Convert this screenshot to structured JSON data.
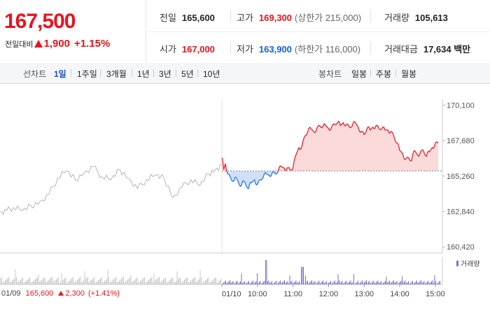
{
  "quote": {
    "price": "167,500",
    "change_label": "전일대비",
    "change_value": "1,900",
    "change_pct": "+1.15%",
    "prev_close_label": "전일",
    "prev_close": "165,600",
    "high_label": "고가",
    "high": "169,300",
    "upper_limit": "(상한가 215,000)",
    "volume_label": "거래량",
    "volume": "105,613",
    "open_label": "시가",
    "open": "167,000",
    "low_label": "저가",
    "low": "163,900",
    "lower_limit": "(하한가 116,000)",
    "amount_label": "거래대금",
    "amount": "17,634 백만"
  },
  "period_bar": {
    "line_label": "선차트",
    "line_options": [
      "1일",
      "1주일",
      "3개월",
      "1년",
      "3년",
      "5년",
      "10년"
    ],
    "line_active": "1일",
    "candle_label": "봉차트",
    "candle_options": [
      "일봉",
      "주봉",
      "월봉"
    ]
  },
  "chart_data": {
    "type": "line",
    "prev_close": 165600,
    "ylim": [
      160000,
      170500
    ],
    "y_ticks": [
      "170,100",
      "167,680",
      "165,260",
      "162,840",
      "160,420"
    ],
    "y_tick_values": [
      170100,
      167680,
      165260,
      162840,
      160420
    ],
    "x_ticks": [
      "01/10",
      "10:00",
      "11:00",
      "12:00",
      "13:00",
      "14:00",
      "15:00"
    ],
    "x_tick_times": [
      540,
      600,
      660,
      720,
      780,
      840,
      900
    ],
    "prev_day_path": [
      [
        0,
        162800
      ],
      [
        0.03,
        162900
      ],
      [
        0.06,
        163100
      ],
      [
        0.1,
        162900
      ],
      [
        0.14,
        163200
      ],
      [
        0.18,
        163500
      ],
      [
        0.22,
        164000
      ],
      [
        0.26,
        165100
      ],
      [
        0.3,
        165600
      ],
      [
        0.34,
        165000
      ],
      [
        0.38,
        165500
      ],
      [
        0.42,
        165900
      ],
      [
        0.46,
        165200
      ],
      [
        0.5,
        165000
      ],
      [
        0.54,
        165700
      ],
      [
        0.58,
        165100
      ],
      [
        0.62,
        164400
      ],
      [
        0.66,
        165000
      ],
      [
        0.7,
        165300
      ],
      [
        0.74,
        165100
      ],
      [
        0.78,
        163800
      ],
      [
        0.82,
        164500
      ],
      [
        0.86,
        165000
      ],
      [
        0.9,
        164600
      ],
      [
        0.94,
        165400
      ],
      [
        0.97,
        165700
      ],
      [
        1.0,
        166000
      ]
    ],
    "series": [
      {
        "points": [
          [
            540,
            166500
          ],
          [
            543,
            165700
          ],
          [
            546,
            166100
          ],
          [
            550,
            165400
          ],
          [
            555,
            165100
          ],
          [
            560,
            164900
          ],
          [
            565,
            165100
          ],
          [
            570,
            164600
          ],
          [
            575,
            164900
          ],
          [
            580,
            164700
          ],
          [
            585,
            164400
          ],
          [
            590,
            164800
          ],
          [
            595,
            165000
          ],
          [
            600,
            164700
          ],
          [
            605,
            165000
          ],
          [
            610,
            165200
          ],
          [
            615,
            165400
          ],
          [
            620,
            165300
          ],
          [
            625,
            165500
          ],
          [
            630,
            165400
          ],
          [
            635,
            165600
          ],
          [
            640,
            165900
          ],
          [
            645,
            165800
          ],
          [
            650,
            165800
          ],
          [
            655,
            165700
          ],
          [
            660,
            165800
          ],
          [
            665,
            166700
          ],
          [
            670,
            167200
          ],
          [
            675,
            167300
          ],
          [
            680,
            168000
          ],
          [
            685,
            168300
          ],
          [
            690,
            168500
          ],
          [
            695,
            168300
          ],
          [
            700,
            168500
          ],
          [
            705,
            168700
          ],
          [
            710,
            168600
          ],
          [
            715,
            168700
          ],
          [
            720,
            168500
          ],
          [
            725,
            168600
          ],
          [
            730,
            168800
          ],
          [
            735,
            168900
          ],
          [
            740,
            168700
          ],
          [
            745,
            168900
          ],
          [
            750,
            168800
          ],
          [
            755,
            168600
          ],
          [
            760,
            168700
          ],
          [
            765,
            168900
          ],
          [
            770,
            168600
          ],
          [
            775,
            168300
          ],
          [
            780,
            168100
          ],
          [
            785,
            168500
          ],
          [
            790,
            168400
          ],
          [
            795,
            168600
          ],
          [
            800,
            168700
          ],
          [
            805,
            168500
          ],
          [
            810,
            168500
          ],
          [
            815,
            168400
          ],
          [
            820,
            168400
          ],
          [
            825,
            168300
          ],
          [
            830,
            168000
          ],
          [
            835,
            167500
          ],
          [
            840,
            167000
          ],
          [
            845,
            166800
          ],
          [
            850,
            166400
          ],
          [
            855,
            166500
          ],
          [
            860,
            166300
          ],
          [
            865,
            167000
          ],
          [
            870,
            166700
          ],
          [
            875,
            166900
          ],
          [
            880,
            167000
          ],
          [
            885,
            166600
          ],
          [
            890,
            166900
          ],
          [
            895,
            167200
          ],
          [
            900,
            167500
          ],
          [
            905,
            167500
          ]
        ]
      }
    ],
    "volume_label": "거래량",
    "footer": {
      "date": "01/09",
      "close": "165,600",
      "change": "2,300",
      "pct": "(+1.41%)"
    }
  }
}
